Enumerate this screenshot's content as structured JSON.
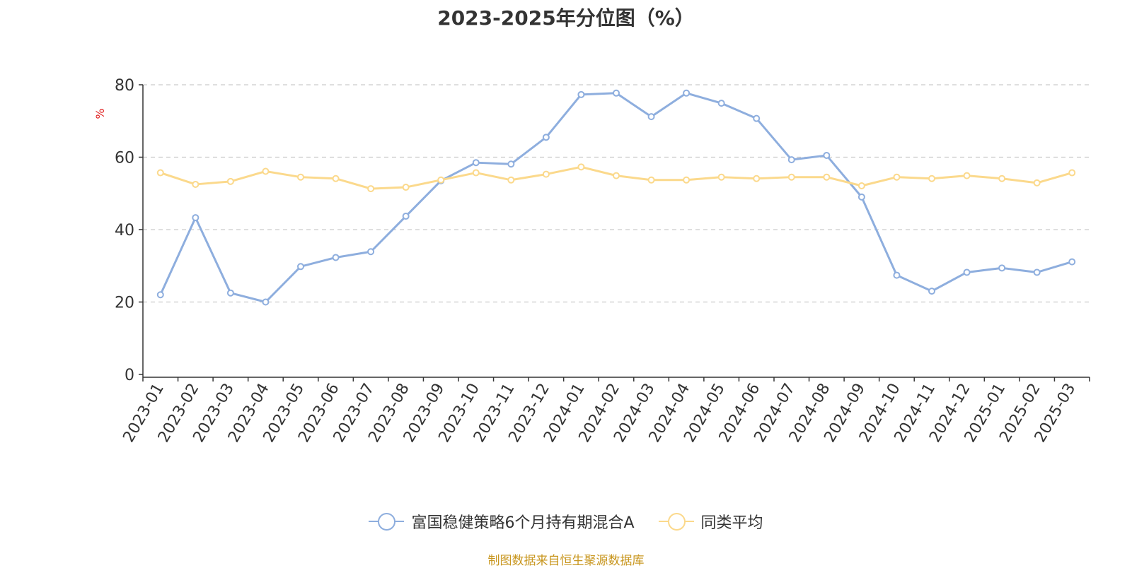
{
  "title": "2023-2025年分位图（%）",
  "source_note": "制图数据来自恒生聚源数据库",
  "chart_data": {
    "type": "line",
    "title": "2023-2025年分位图（%）",
    "xlabel": "",
    "ylabel": "%",
    "ylim": [
      0,
      80
    ],
    "yticks": [
      "0",
      "20",
      "40",
      "60",
      "80"
    ],
    "grid": true,
    "legend_position": "bottom",
    "categories": [
      "2023-01",
      "2023-02",
      "2023-03",
      "2023-04",
      "2023-05",
      "2023-06",
      "2023-07",
      "2023-08",
      "2023-09",
      "2023-10",
      "2023-11",
      "2023-12",
      "2024-01",
      "2024-02",
      "2024-03",
      "2024-04",
      "2024-05",
      "2024-06",
      "2024-07",
      "2024-08",
      "2024-09",
      "2024-10",
      "2024-11",
      "2024-12",
      "2025-01",
      "2025-02",
      "2025-03"
    ],
    "series": [
      {
        "name": "富国稳健策略6个月持有期混合A",
        "color": "#8eaede",
        "values": [
          22.0,
          43.3,
          22.5,
          20.0,
          29.8,
          32.3,
          33.9,
          43.7,
          53.5,
          58.5,
          58.1,
          65.5,
          77.3,
          77.7,
          71.2,
          77.7,
          74.9,
          70.7,
          59.3,
          60.5,
          49.0,
          27.4,
          23.0,
          28.2,
          29.4,
          28.2,
          31.1
        ]
      },
      {
        "name": "同类平均",
        "color": "#fbd98c",
        "values": [
          55.7,
          52.5,
          53.3,
          56.1,
          54.5,
          54.1,
          51.3,
          51.7,
          53.7,
          55.7,
          53.7,
          55.3,
          57.3,
          54.9,
          53.7,
          53.7,
          54.5,
          54.1,
          54.5,
          54.5,
          52.1,
          54.5,
          54.1,
          54.9,
          54.1,
          52.9,
          55.7
        ]
      }
    ]
  }
}
